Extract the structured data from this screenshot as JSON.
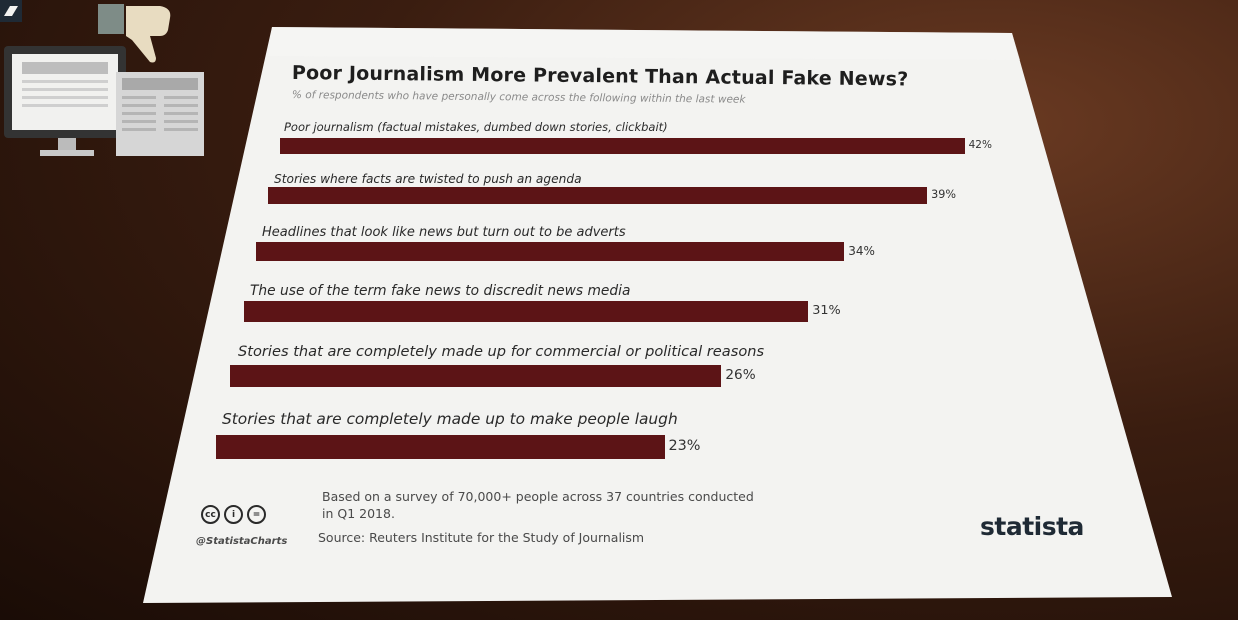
{
  "title": "Poor Journalism More Prevalent Than Actual Fake News?",
  "subtitle": "% of respondents who have personally come across the following within the last week",
  "chart_data": {
    "type": "bar",
    "orientation": "horizontal",
    "title": "Poor Journalism More Prevalent Than Actual Fake News?",
    "subtitle": "% of respondents who have personally come across the following within the last week",
    "categories": [
      "Poor journalism (factual mistakes, dumbed down stories, clickbait)",
      "Stories where facts are twisted to push an agenda",
      "Headlines that look like news but turn out to be adverts",
      "The use of the term fake news to discredit news media",
      "Stories that are completely made up for commercial or political reasons",
      "Stories that are completely made up to make people laugh"
    ],
    "values": [
      42,
      39,
      34,
      31,
      26,
      23
    ],
    "value_labels": [
      "42%",
      "39%",
      "34%",
      "31%",
      "26%",
      "23%"
    ],
    "unit": "%",
    "grid": false,
    "bar_color": "#5c1416"
  },
  "footnote": "Based on a survey of 70,000+ people across 37 countries conducted in Q1 2018.",
  "source": "Source: Reuters Institute for the Study of Journalism",
  "handle": "@StatistaCharts",
  "license_icons": [
    "cc-icon",
    "attribution-icon",
    "no-derivatives-icon"
  ],
  "license_glyphs": [
    "cc",
    "i",
    "="
  ],
  "brand": "statista",
  "colors": {
    "bar": "#5c1416",
    "paper": "#f4f4f2",
    "brand": "#1f2a35"
  },
  "illustration": [
    "thumbs-down-icon",
    "monitor-icon",
    "newspaper-icon"
  ]
}
